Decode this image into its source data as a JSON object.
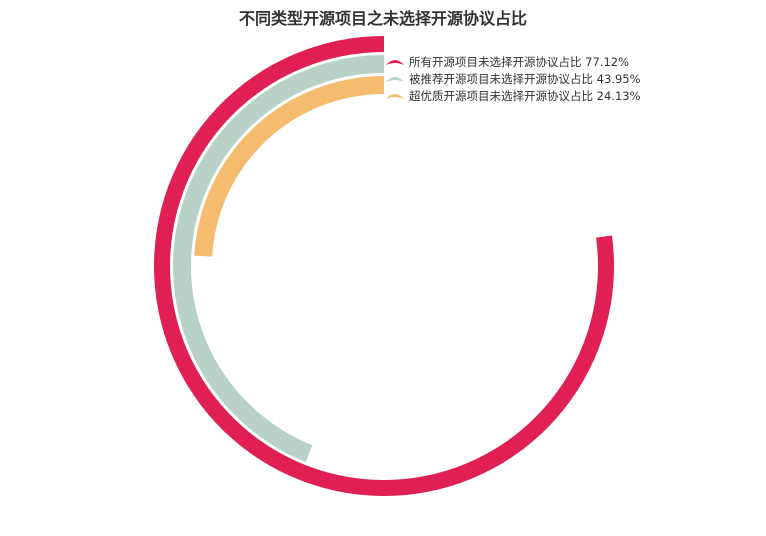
{
  "chart_data": {
    "type": "radial-bar",
    "title": "不同类型开源项目之未选择开源协议占比",
    "max": 100,
    "series": [
      {
        "name": "所有开源项目未选择开源协议占比",
        "value": 77.12,
        "label": "77.12%",
        "color": "#e01f54"
      },
      {
        "name": "被推荐开源项目未选择开源协议占比",
        "value": 43.95,
        "label": "43.95%",
        "color": "#b8d2c7"
      },
      {
        "name": "超优质开源项目未选择开源协议占比",
        "value": 24.13,
        "label": "24.13%",
        "color": "#f5bb6e"
      }
    ],
    "legend_position": "top-right"
  }
}
